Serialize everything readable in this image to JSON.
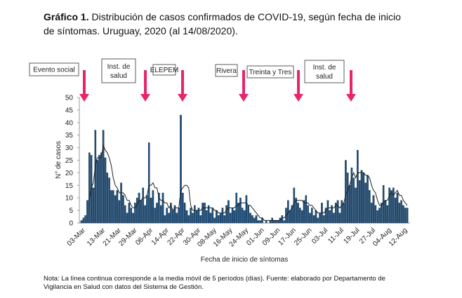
{
  "chart_data": {
    "type": "bar",
    "title_label": "Gráfico 1.",
    "title": "Distribución de casos confirmados de COVID-19, según fecha de inicio de síntomas. Uruguay, 2020 (al 14/08/2020).",
    "ylabel": "N° de casos",
    "xlabel": "Fecha de inicio de síntomas",
    "note": "Nota: La línea continua corresponde a la media móvil de 5 períodos (días). Fuente: elaborado por Departamento de Vigilancia en Salud con datos del Sistema de Gestión.",
    "color": "#1f4e79",
    "line_color": "#222222",
    "annotation_color": "#e8246b",
    "ylim": [
      0,
      50
    ],
    "yticks": [
      0,
      5,
      10,
      15,
      20,
      25,
      30,
      35,
      40,
      45,
      50
    ],
    "grid": false,
    "annotations": [
      [
        "Evento social"
      ],
      [
        "Inst. de",
        "salud"
      ],
      [
        "ELEPEM"
      ],
      [
        "Rivera"
      ],
      [
        "Treinta y Tres"
      ],
      [
        "Inst. de",
        "salud"
      ]
    ],
    "categories": [
      "03-Mar",
      null,
      null,
      null,
      null,
      null,
      null,
      null,
      null,
      null,
      "13-Mar",
      null,
      null,
      null,
      null,
      null,
      null,
      null,
      "21-Mar",
      null,
      null,
      null,
      null,
      null,
      null,
      null,
      "29-Mar",
      null,
      null,
      null,
      null,
      null,
      null,
      null,
      "06-Apr",
      null,
      null,
      null,
      null,
      null,
      null,
      null,
      "14-Apr",
      null,
      null,
      null,
      null,
      null,
      null,
      null,
      "22-Apr",
      null,
      null,
      null,
      null,
      null,
      null,
      null,
      "30-Apr",
      null,
      null,
      null,
      null,
      null,
      null,
      null,
      "08-May",
      null,
      null,
      null,
      null,
      null,
      null,
      null,
      "16-May",
      null,
      null,
      null,
      null,
      null,
      null,
      null,
      "24-May",
      null,
      null,
      null,
      null,
      null,
      null,
      null,
      "01-Jun",
      null,
      null,
      null,
      null,
      null,
      null,
      null,
      "09-Jun",
      null,
      null,
      null,
      null,
      null,
      null,
      null,
      "17-Jun",
      null,
      null,
      null,
      null,
      null,
      null,
      null,
      "25-Jun",
      null,
      null,
      null,
      null,
      null,
      null,
      null,
      "03-Jul",
      null,
      null,
      null,
      null,
      null,
      null,
      null,
      "11-Jul",
      null,
      null,
      null,
      null,
      null,
      null,
      null,
      "19-Jul",
      null,
      null,
      null,
      null,
      null,
      null,
      null,
      "27-Jul",
      null,
      null,
      null,
      null,
      null,
      null,
      null,
      "04-Aug",
      null,
      null,
      null,
      null,
      null,
      null,
      null,
      "12-Aug",
      null,
      null
    ],
    "values": [
      1,
      2,
      3,
      9,
      28,
      27,
      14,
      37,
      25,
      27,
      28,
      37,
      26,
      20,
      18,
      13,
      13,
      11,
      13,
      9,
      16,
      11,
      7,
      4,
      8,
      6,
      4,
      8,
      10,
      12,
      9,
      14,
      7,
      11,
      32,
      10,
      13,
      6,
      8,
      12,
      7,
      12,
      3,
      6,
      4,
      8,
      5,
      7,
      4,
      6,
      43,
      12,
      8,
      5,
      3,
      6,
      4,
      7,
      5,
      6,
      3,
      8,
      8,
      5,
      7,
      4,
      6,
      2,
      5,
      3,
      4,
      6,
      3,
      7,
      9,
      4,
      6,
      5,
      12,
      8,
      10,
      6,
      5,
      11,
      7,
      4,
      3,
      2,
      3,
      1,
      1,
      2,
      0,
      1,
      0,
      1,
      2,
      1,
      1,
      1,
      2,
      3,
      1,
      6,
      9,
      5,
      7,
      14,
      10,
      8,
      6,
      5,
      9,
      11,
      7,
      4,
      6,
      3,
      5,
      2,
      4,
      8,
      3,
      6,
      9,
      5,
      7,
      4,
      8,
      9,
      4,
      9,
      8,
      25,
      20,
      15,
      22,
      18,
      14,
      29,
      17,
      21,
      20,
      16,
      19,
      13,
      8,
      11,
      7,
      5,
      6,
      8,
      15,
      9,
      7,
      14,
      13,
      14,
      10,
      12,
      8,
      9,
      7,
      6,
      6
    ],
    "moving_average": [
      null,
      null,
      null,
      null,
      9,
      14,
      16,
      23,
      26,
      26,
      26,
      31,
      29,
      28,
      26,
      23,
      18,
      15,
      14,
      12,
      12,
      12,
      11,
      9,
      9,
      7,
      6,
      6,
      7,
      9,
      9,
      10,
      10,
      11,
      15,
      15,
      16,
      14,
      14,
      10,
      9,
      9,
      8,
      8,
      6,
      7,
      5,
      6,
      6,
      6,
      13,
      14,
      15,
      15,
      14,
      7,
      5,
      5,
      5,
      5,
      5,
      6,
      6,
      6,
      6,
      6,
      6,
      5,
      5,
      4,
      4,
      4,
      4,
      5,
      6,
      6,
      6,
      6,
      7,
      7,
      8,
      8,
      8,
      8,
      7,
      7,
      6,
      5,
      4,
      3,
      2,
      2,
      1,
      1,
      1,
      1,
      1,
      1,
      1,
      1,
      1,
      2,
      2,
      3,
      4,
      5,
      6,
      8,
      9,
      9,
      9,
      9,
      8,
      8,
      8,
      7,
      7,
      6,
      5,
      4,
      4,
      4,
      4,
      5,
      6,
      6,
      6,
      6,
      7,
      7,
      6,
      7,
      8,
      11,
      13,
      15,
      18,
      20,
      18,
      20,
      20,
      20,
      20,
      19,
      19,
      18,
      15,
      13,
      12,
      9,
      7,
      7,
      8,
      9,
      9,
      11,
      12,
      11,
      12,
      13,
      11,
      11,
      9,
      8,
      7
    ]
  }
}
